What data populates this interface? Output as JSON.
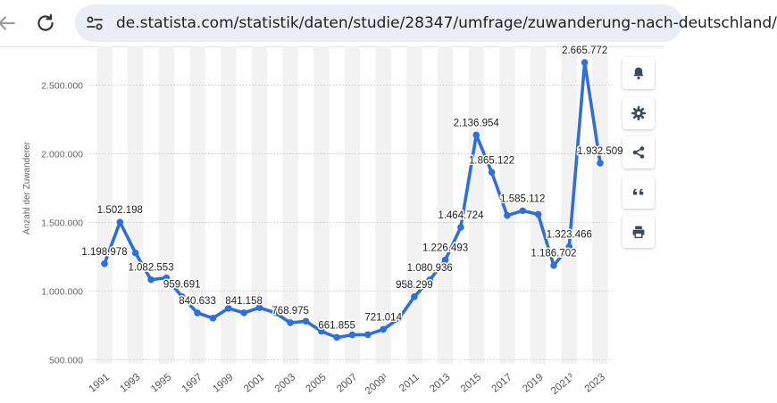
{
  "browser": {
    "url": "de.statista.com/statistik/daten/studie/28347/umfrage/zuwanderung-nach-deutschland/",
    "icons": [
      "back-arrow-icon",
      "reload-icon",
      "site-settings-icon"
    ]
  },
  "toolbar": {
    "icons": [
      "notification-bell-icon",
      "settings-gear-icon",
      "share-icon",
      "quote-icon",
      "print-icon"
    ]
  },
  "colors": {
    "line": "#2f6fd6",
    "grid": "#cfcfcf",
    "band": "#f2f2f2",
    "text": "#1f1f1f",
    "axis_text": "#666666"
  },
  "chart_data": {
    "type": "line",
    "ylabel": "Anzahl der Zuwanderer",
    "ylim": [
      470000,
      2770000
    ],
    "yticks": [
      500000,
      1000000,
      1500000,
      2000000,
      2500000
    ],
    "ytick_labels": [
      "500.000",
      "1.000.000",
      "1.500.000",
      "2.000.000",
      "2.500.000"
    ],
    "grid": true,
    "x": [
      1991,
      1992,
      1993,
      1994,
      1995,
      1996,
      1997,
      1998,
      1999,
      2000,
      2001,
      2002,
      2003,
      2004,
      2005,
      2006,
      2007,
      2008,
      2009,
      2010,
      2011,
      2012,
      2013,
      2014,
      2015,
      2016,
      2017,
      2018,
      2019,
      2020,
      2021,
      2022,
      2023
    ],
    "xtick_labels": [
      "1991",
      "1993",
      "1995",
      "1997",
      "1999",
      "2001",
      "2003",
      "2005",
      "2007",
      "2009¹",
      "2011",
      "2013",
      "2015",
      "2017",
      "2019",
      "2021³",
      "2023"
    ],
    "values": [
      1198978,
      1502198,
      1277408,
      1082553,
      1096048,
      959691,
      840633,
      802456,
      874023,
      841158,
      879217,
      842543,
      768975,
      780175,
      707352,
      661855,
      680766,
      682146,
      721014,
      798282,
      958299,
      1080936,
      1226493,
      1464724,
      2136954,
      1865122,
      1550721,
      1585112,
      1558612,
      1186702,
      1323466,
      2665772,
      1932509
    ],
    "data_labels": [
      {
        "year": 1991,
        "text": "1.198.978"
      },
      {
        "year": 1992,
        "text": "1.502.198"
      },
      {
        "year": 1994,
        "text": "1.082.553"
      },
      {
        "year": 1996,
        "text": "959.691"
      },
      {
        "year": 1997,
        "text": "840.633"
      },
      {
        "year": 2000,
        "text": "841.158"
      },
      {
        "year": 2003,
        "text": "768.975"
      },
      {
        "year": 2006,
        "text": "661.855"
      },
      {
        "year": 2009,
        "text": "721.014"
      },
      {
        "year": 2011,
        "text": "958.299"
      },
      {
        "year": 2012,
        "text": "1.080.936"
      },
      {
        "year": 2013,
        "text": "1.226.493"
      },
      {
        "year": 2014,
        "text": "1.464.724"
      },
      {
        "year": 2015,
        "text": "2.136.954"
      },
      {
        "year": 2016,
        "text": "1.865.122"
      },
      {
        "year": 2018,
        "text": "1.585.112"
      },
      {
        "year": 2020,
        "text": "1.186.702"
      },
      {
        "year": 2021,
        "text": "1.323.466"
      },
      {
        "year": 2022,
        "text": "2.665.772"
      },
      {
        "year": 2023,
        "text": "1.932.509"
      }
    ]
  }
}
